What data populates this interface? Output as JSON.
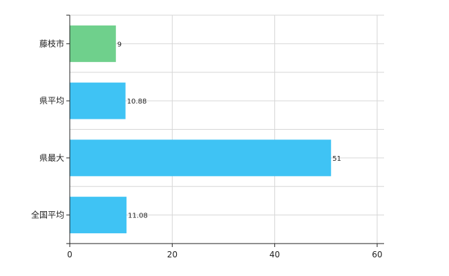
{
  "chart_data": {
    "type": "bar",
    "orientation": "horizontal",
    "categories": [
      "藤枝市",
      "県平均",
      "県最大",
      "全国平均"
    ],
    "values": [
      9,
      10.88,
      51,
      11.08
    ],
    "value_labels": [
      "9",
      "10.88",
      "51",
      "11.08"
    ],
    "xlim": [
      0,
      60
    ],
    "xticks": [
      0,
      20,
      40,
      60
    ],
    "xtick_labels": [
      "0",
      "20",
      "40",
      "60"
    ],
    "grid": true,
    "legend": "none",
    "colors": {
      "highlight": "#6fd08c",
      "default": "#3fc3f4",
      "grid": "#d6d6d6",
      "axis": "#222222"
    },
    "highlight_index": 0
  }
}
